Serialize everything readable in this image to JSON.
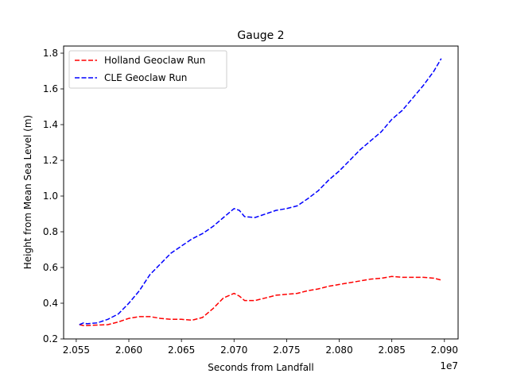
{
  "chart_data": {
    "type": "line",
    "title": "Gauge 2",
    "xlabel": "Seconds from Landfall",
    "ylabel": "Height from Mean Sea Level (m)",
    "x_offset_label": "1e7",
    "xlim": [
      2.0538,
      2.0913
    ],
    "ylim": [
      0.2,
      1.84
    ],
    "x_ticks": [
      2.055,
      2.06,
      2.065,
      2.07,
      2.075,
      2.08,
      2.085,
      2.09
    ],
    "x_tick_labels": [
      "2.055",
      "2.060",
      "2.065",
      "2.070",
      "2.075",
      "2.080",
      "2.085",
      "2.090"
    ],
    "y_ticks": [
      0.2,
      0.4,
      0.6,
      0.8,
      1.0,
      1.2,
      1.4,
      1.6,
      1.8
    ],
    "y_tick_labels": [
      "0.2",
      "0.4",
      "0.6",
      "0.8",
      "1.0",
      "1.2",
      "1.4",
      "1.6",
      "1.8"
    ],
    "grid": false,
    "legend_position": "top-left",
    "series": [
      {
        "name": "Holland Geoclaw Run",
        "color": "#ff0000",
        "x": [
          2.0553,
          2.0557,
          2.056,
          2.058,
          2.059,
          2.06,
          2.061,
          2.062,
          2.063,
          2.064,
          2.065,
          2.066,
          2.067,
          2.068,
          2.069,
          2.07,
          2.0705,
          2.071,
          2.072,
          2.073,
          2.074,
          2.075,
          2.076,
          2.077,
          2.078,
          2.079,
          2.08,
          2.081,
          2.082,
          2.083,
          2.084,
          2.085,
          2.086,
          2.087,
          2.088,
          2.089,
          2.0897
        ],
        "y": [
          0.28,
          0.275,
          0.275,
          0.28,
          0.295,
          0.315,
          0.325,
          0.325,
          0.315,
          0.31,
          0.31,
          0.305,
          0.32,
          0.37,
          0.43,
          0.455,
          0.44,
          0.415,
          0.415,
          0.43,
          0.445,
          0.45,
          0.455,
          0.47,
          0.48,
          0.495,
          0.505,
          0.515,
          0.525,
          0.535,
          0.54,
          0.55,
          0.545,
          0.545,
          0.545,
          0.54,
          0.53
        ]
      },
      {
        "name": "CLE Geoclaw Run",
        "color": "#0000ff",
        "x": [
          2.0553,
          2.0557,
          2.056,
          2.057,
          2.058,
          2.059,
          2.06,
          2.061,
          2.062,
          2.063,
          2.064,
          2.065,
          2.066,
          2.067,
          2.068,
          2.069,
          2.07,
          2.0705,
          2.071,
          2.072,
          2.073,
          2.074,
          2.075,
          2.076,
          2.077,
          2.078,
          2.079,
          2.08,
          2.081,
          2.082,
          2.083,
          2.084,
          2.085,
          2.086,
          2.087,
          2.088,
          2.089,
          2.0897
        ],
        "y": [
          0.28,
          0.29,
          0.285,
          0.29,
          0.31,
          0.34,
          0.4,
          0.47,
          0.56,
          0.62,
          0.68,
          0.72,
          0.76,
          0.79,
          0.83,
          0.88,
          0.93,
          0.92,
          0.885,
          0.88,
          0.9,
          0.92,
          0.93,
          0.945,
          0.985,
          1.03,
          1.09,
          1.14,
          1.2,
          1.26,
          1.31,
          1.36,
          1.43,
          1.48,
          1.55,
          1.62,
          1.7,
          1.77
        ]
      }
    ]
  }
}
